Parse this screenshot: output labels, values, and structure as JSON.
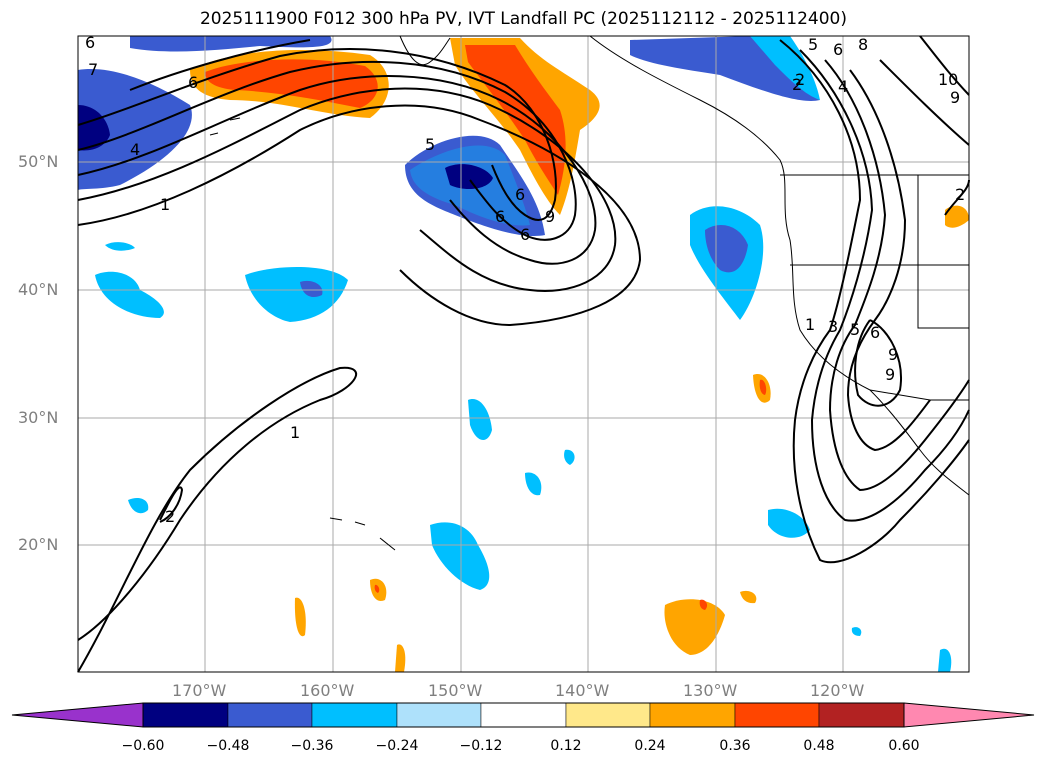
{
  "title": "2025111900 F012 300 hPa PV, IVT Landfall PC (2025112112 - 2025112400)",
  "map": {
    "lat_labels": [
      "50°N",
      "40°N",
      "30°N",
      "20°N"
    ],
    "lon_labels": [
      "170°W",
      "160°W",
      "150°W",
      "140°W",
      "130°W",
      "120°W"
    ],
    "colors": {
      "neg_060": "#000080",
      "neg_048": "#3a5bd0",
      "neg_036": "#00bfff",
      "neg_024": "#aee1fb",
      "pos_024": "#ffa500",
      "pos_036": "#ff4500",
      "pos_048": "#b22222",
      "pos_060": "#ff88b0",
      "purple": "#9932cc",
      "yellow": "#ffe88a"
    },
    "contour_labels": [
      "7",
      "6",
      "6",
      "4",
      "1",
      "1",
      "2",
      "5",
      "6",
      "9",
      "6",
      "6",
      "9",
      "1",
      "3",
      "5",
      "6",
      "9",
      "5",
      "2",
      "4",
      "2",
      "6",
      "8",
      "10",
      "9",
      "2"
    ]
  },
  "colorbar": {
    "colors": [
      "#9932cc",
      "#000080",
      "#3a5bd0",
      "#00bfff",
      "#aee1fb",
      "#ffffff",
      "#ffe88a",
      "#ffa500",
      "#ff4500",
      "#b22222",
      "#ff88b0"
    ],
    "tick_labels": [
      "−0.60",
      "−0.48",
      "−0.36",
      "−0.24",
      "−0.12",
      "0.12",
      "0.24",
      "0.36",
      "0.48",
      "0.60"
    ]
  }
}
